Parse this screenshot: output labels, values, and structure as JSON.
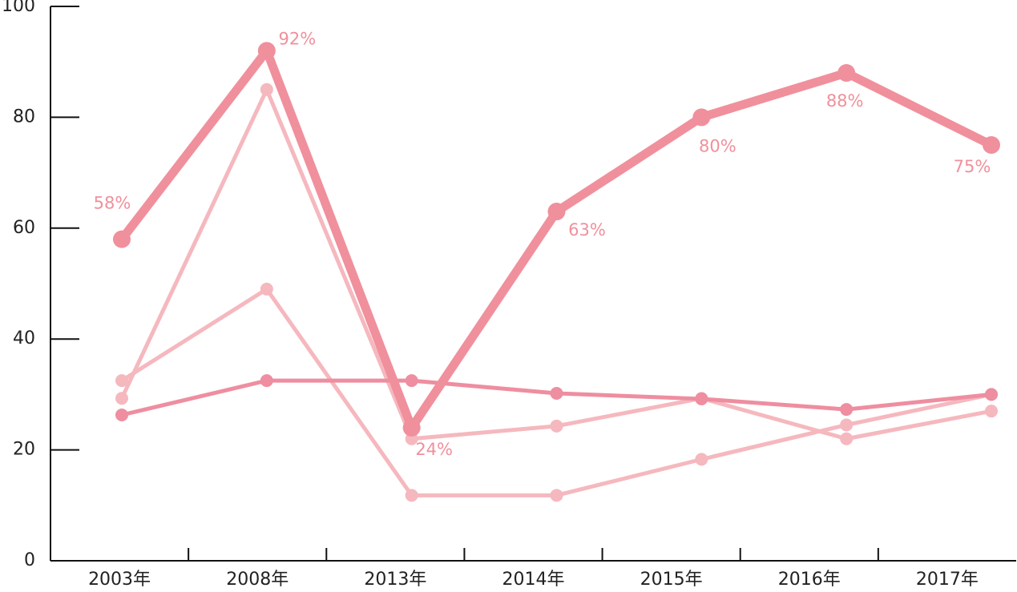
{
  "chart_data": {
    "type": "line",
    "categories": [
      "2003年",
      "2008年",
      "2013年",
      "2014年",
      "2015年",
      "2016年",
      "2017年"
    ],
    "series": [
      {
        "color": "#f5b8be",
        "values": [
          29.3,
          85,
          22,
          24.3,
          29.3,
          22,
          27
        ]
      },
      {
        "color": "#f5b8be",
        "values": [
          32.5,
          49,
          11.8,
          11.8,
          18.3,
          24.5,
          30
        ]
      },
      {
        "color": "#ee8ea0",
        "values": [
          26.3,
          32.5,
          32.5,
          30.2,
          29.2,
          27.3,
          30
        ]
      },
      {
        "color": "#f0909c",
        "values": [
          58,
          92,
          24,
          63,
          80,
          88,
          75
        ],
        "value_labels": [
          "58%",
          "92%",
          "24%",
          "63%",
          "80%",
          "88%",
          "75%"
        ]
      }
    ],
    "ylim": [
      0,
      100
    ],
    "yticks": [
      0,
      20,
      40,
      60,
      80,
      100
    ]
  }
}
